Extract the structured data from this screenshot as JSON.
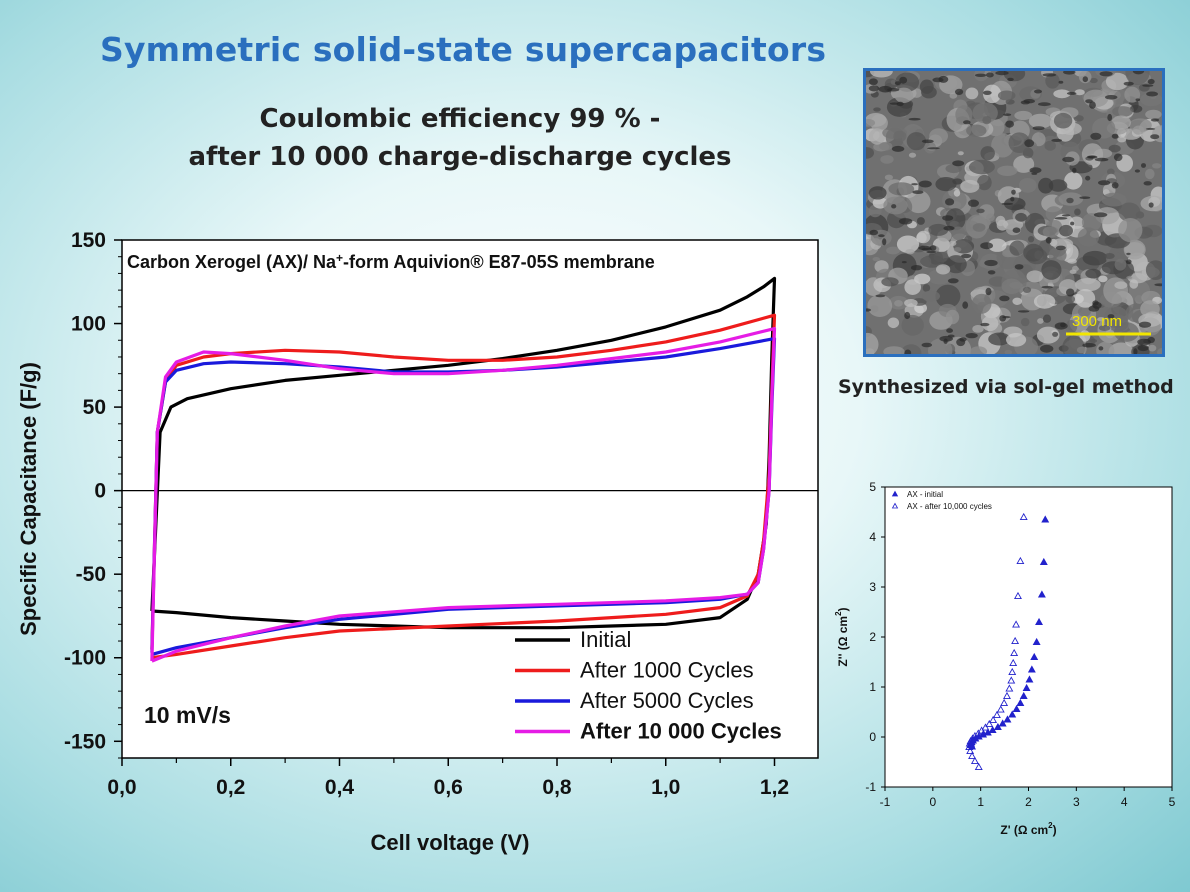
{
  "slide": {
    "title": "Symmetric solid-state supercapacitors",
    "subtitle_line1": "Coulombic efficiency 99 % -",
    "subtitle_line2": "after 10 000 charge-discharge cycles",
    "sem_scale_label": "300 nm",
    "sem_caption": "Synthesized via sol-gel method"
  },
  "colors": {
    "title": "#2a6fbe",
    "initial": "#000000",
    "c1000": "#ee1c1c",
    "c5000": "#1a1adc",
    "c10000": "#e51ce5",
    "nyquist": "#2222cc",
    "scale_bar": "#f2e600"
  },
  "chart_data": [
    {
      "type": "line",
      "title": "",
      "annotation": "Carbon Xerogel (AX)/ Na+-form Aquivion® E87-05S membrane",
      "annotation_parts": {
        "a": "Carbon Xerogel (AX)/ Na",
        "sup": "+",
        "b": "-form Aquivion® E87-05S membrane"
      },
      "scan_rate_label": "10 mV/s",
      "xlabel": "Cell voltage (V)",
      "ylabel": "Specific Capacitance (F/g)",
      "xlim": [
        0.0,
        1.28
      ],
      "ylim": [
        -160,
        150
      ],
      "xticks": [
        0.0,
        0.2,
        0.4,
        0.6,
        0.8,
        1.0,
        1.2
      ],
      "xtick_labels": [
        "0,0",
        "0,2",
        "0,4",
        "0,6",
        "0,8",
        "1,0",
        "1,2"
      ],
      "yticks": [
        150,
        100,
        50,
        0,
        -50,
        -100,
        -150
      ],
      "ytick_labels": [
        "150",
        "100",
        "50",
        "0",
        "-50",
        "-100",
        "-150"
      ],
      "legend_position": "bottom-right",
      "series": [
        {
          "name": "Initial",
          "color_key": "initial",
          "upper_x": [
            0.055,
            0.07,
            0.09,
            0.12,
            0.2,
            0.3,
            0.4,
            0.5,
            0.6,
            0.7,
            0.8,
            0.9,
            1.0,
            1.1,
            1.15,
            1.18,
            1.2
          ],
          "upper_y": [
            -72,
            35,
            50,
            55,
            61,
            66,
            69,
            72,
            75,
            79,
            84,
            90,
            98,
            108,
            116,
            122,
            127
          ],
          "lower_x": [
            1.2,
            1.195,
            1.19,
            1.185,
            1.17,
            1.15,
            1.1,
            1.0,
            0.9,
            0.8,
            0.7,
            0.6,
            0.5,
            0.4,
            0.3,
            0.2,
            0.1,
            0.055
          ],
          "lower_y": [
            127,
            80,
            20,
            -20,
            -50,
            -65,
            -76,
            -80,
            -81,
            -82,
            -82,
            -82,
            -81,
            -80,
            -78,
            -76,
            -73,
            -72
          ]
        },
        {
          "name": "After 1000 Cycles",
          "color_key": "c1000",
          "upper_x": [
            0.055,
            0.065,
            0.08,
            0.1,
            0.15,
            0.2,
            0.3,
            0.4,
            0.5,
            0.6,
            0.7,
            0.8,
            0.9,
            1.0,
            1.1,
            1.2
          ],
          "upper_y": [
            -95,
            35,
            65,
            75,
            80,
            82,
            84,
            83,
            80,
            78,
            78,
            80,
            84,
            89,
            96,
            105
          ],
          "lower_x": [
            1.2,
            1.195,
            1.19,
            1.18,
            1.17,
            1.15,
            1.1,
            1.0,
            0.8,
            0.6,
            0.4,
            0.3,
            0.2,
            0.1,
            0.055
          ],
          "lower_y": [
            105,
            60,
            10,
            -30,
            -50,
            -63,
            -70,
            -74,
            -78,
            -81,
            -84,
            -88,
            -93,
            -98,
            -100
          ]
        },
        {
          "name": "After 5000 Cycles",
          "color_key": "c5000",
          "upper_x": [
            0.055,
            0.065,
            0.08,
            0.1,
            0.15,
            0.2,
            0.3,
            0.4,
            0.5,
            0.6,
            0.7,
            0.8,
            0.9,
            1.0,
            1.1,
            1.2
          ],
          "upper_y": [
            -97,
            35,
            65,
            72,
            76,
            77,
            76,
            74,
            71,
            71,
            72,
            74,
            77,
            80,
            85,
            91
          ],
          "lower_x": [
            1.2,
            1.195,
            1.19,
            1.18,
            1.17,
            1.15,
            1.1,
            1.0,
            0.8,
            0.6,
            0.4,
            0.3,
            0.2,
            0.1,
            0.055
          ],
          "lower_y": [
            91,
            50,
            0,
            -35,
            -55,
            -62,
            -65,
            -67,
            -69,
            -71,
            -77,
            -82,
            -88,
            -94,
            -98
          ]
        },
        {
          "name": "After 10 000 Cycles",
          "color_key": "c10000",
          "upper_x": [
            0.055,
            0.065,
            0.08,
            0.1,
            0.15,
            0.2,
            0.3,
            0.4,
            0.5,
            0.6,
            0.7,
            0.8,
            0.9,
            1.0,
            1.1,
            1.2
          ],
          "upper_y": [
            -102,
            35,
            68,
            77,
            83,
            82,
            78,
            73,
            70,
            70,
            72,
            75,
            79,
            83,
            89,
            97
          ],
          "lower_x": [
            1.2,
            1.195,
            1.19,
            1.18,
            1.17,
            1.15,
            1.1,
            1.0,
            0.8,
            0.6,
            0.4,
            0.3,
            0.2,
            0.1,
            0.055
          ],
          "lower_y": [
            97,
            55,
            0,
            -35,
            -55,
            -62,
            -64,
            -66,
            -68,
            -70,
            -75,
            -81,
            -88,
            -96,
            -102
          ]
        }
      ]
    },
    {
      "type": "scatter",
      "title": "",
      "xlabel_parts": {
        "a": "Z' (Ω cm",
        "sup": "2",
        "b": ")"
      },
      "ylabel_parts": {
        "a": "Z'' (Ω cm",
        "sup": "2",
        "b": ")"
      },
      "xlim": [
        -1,
        5
      ],
      "ylim": [
        -1,
        5
      ],
      "xticks": [
        -1,
        0,
        1,
        2,
        3,
        4,
        5
      ],
      "yticks": [
        -1,
        0,
        1,
        2,
        3,
        4,
        5
      ],
      "tick_labels": [
        "-1",
        "0",
        "1",
        "2",
        "3",
        "4",
        "5"
      ],
      "legend_position": "top-left",
      "series": [
        {
          "name": "AX - initial",
          "marker": "filled-triangle",
          "x": [
            2.35,
            2.32,
            2.28,
            2.22,
            2.17,
            2.12,
            2.07,
            2.02,
            1.96,
            1.9,
            1.83,
            1.75,
            1.66,
            1.56,
            1.46,
            1.36,
            1.25,
            1.15,
            1.05,
            0.96,
            0.89,
            0.84,
            0.81,
            0.8,
            0.8,
            0.82
          ],
          "y": [
            4.35,
            3.5,
            2.85,
            2.3,
            1.9,
            1.6,
            1.35,
            1.15,
            0.98,
            0.82,
            0.68,
            0.56,
            0.45,
            0.35,
            0.27,
            0.2,
            0.14,
            0.09,
            0.05,
            0.01,
            -0.03,
            -0.07,
            -0.1,
            -0.13,
            -0.16,
            -0.19
          ]
        },
        {
          "name": "AX - after 10,000 cycles",
          "marker": "open-triangle",
          "x": [
            1.9,
            1.83,
            1.78,
            1.74,
            1.72,
            1.7,
            1.68,
            1.66,
            1.64,
            1.6,
            1.55,
            1.49,
            1.42,
            1.34,
            1.26,
            1.18,
            1.1,
            1.02,
            0.95,
            0.88,
            0.83,
            0.79,
            0.77,
            0.76,
            0.78,
            0.82,
            0.88,
            0.96
          ],
          "y": [
            4.4,
            3.52,
            2.82,
            2.25,
            1.92,
            1.68,
            1.48,
            1.3,
            1.13,
            0.97,
            0.82,
            0.68,
            0.55,
            0.44,
            0.34,
            0.26,
            0.19,
            0.13,
            0.07,
            0.02,
            -0.03,
            -0.08,
            -0.13,
            -0.2,
            -0.28,
            -0.38,
            -0.48,
            -0.6
          ]
        }
      ]
    }
  ]
}
